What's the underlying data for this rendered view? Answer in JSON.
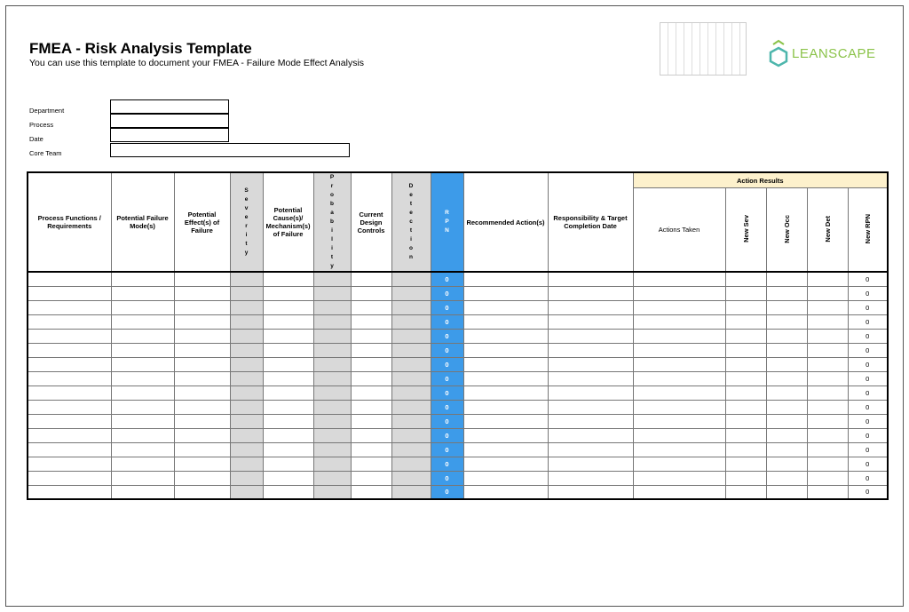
{
  "header": {
    "title": "FMEA - Risk Analysis Template",
    "subtitle": "You can use this template to document your FMEA - Failure Mode Effect Analysis",
    "logo_text": "LEANSCAPE"
  },
  "info": {
    "department": "Department",
    "process": "Process",
    "date": "Date",
    "core_team": "Core Team"
  },
  "table": {
    "action_results": "Action Results",
    "columns": [
      "Process Functions / Requirements",
      "Potential Failure Mode(s)",
      "Potential Effect(s) of Failure",
      "Severity",
      "Potential Cause(s)/ Mechanism(s) of Failure",
      "Probability",
      "Current Design Controls",
      "Detection",
      "RPN",
      "Recommended Action(s)",
      "Responsibility & Target Completion Date",
      "Actions Taken",
      "New Sev",
      "New Occ",
      "New Det",
      "New RPN"
    ],
    "rows": [
      {
        "rpn": "0",
        "new_rpn": "0"
      },
      {
        "rpn": "0",
        "new_rpn": "0"
      },
      {
        "rpn": "0",
        "new_rpn": "0"
      },
      {
        "rpn": "0",
        "new_rpn": "0"
      },
      {
        "rpn": "0",
        "new_rpn": "0"
      },
      {
        "rpn": "0",
        "new_rpn": "0"
      },
      {
        "rpn": "0",
        "new_rpn": "0"
      },
      {
        "rpn": "0",
        "new_rpn": "0"
      },
      {
        "rpn": "0",
        "new_rpn": "0"
      },
      {
        "rpn": "0",
        "new_rpn": "0"
      },
      {
        "rpn": "0",
        "new_rpn": "0"
      },
      {
        "rpn": "0",
        "new_rpn": "0"
      },
      {
        "rpn": "0",
        "new_rpn": "0"
      },
      {
        "rpn": "0",
        "new_rpn": "0"
      },
      {
        "rpn": "0",
        "new_rpn": "0"
      },
      {
        "rpn": "0",
        "new_rpn": "0"
      }
    ]
  },
  "colors": {
    "rpn": "#3d9be9",
    "rating": "#d9d9d9",
    "action_results": "#fdf1cc",
    "brand": "#8bc34a"
  }
}
